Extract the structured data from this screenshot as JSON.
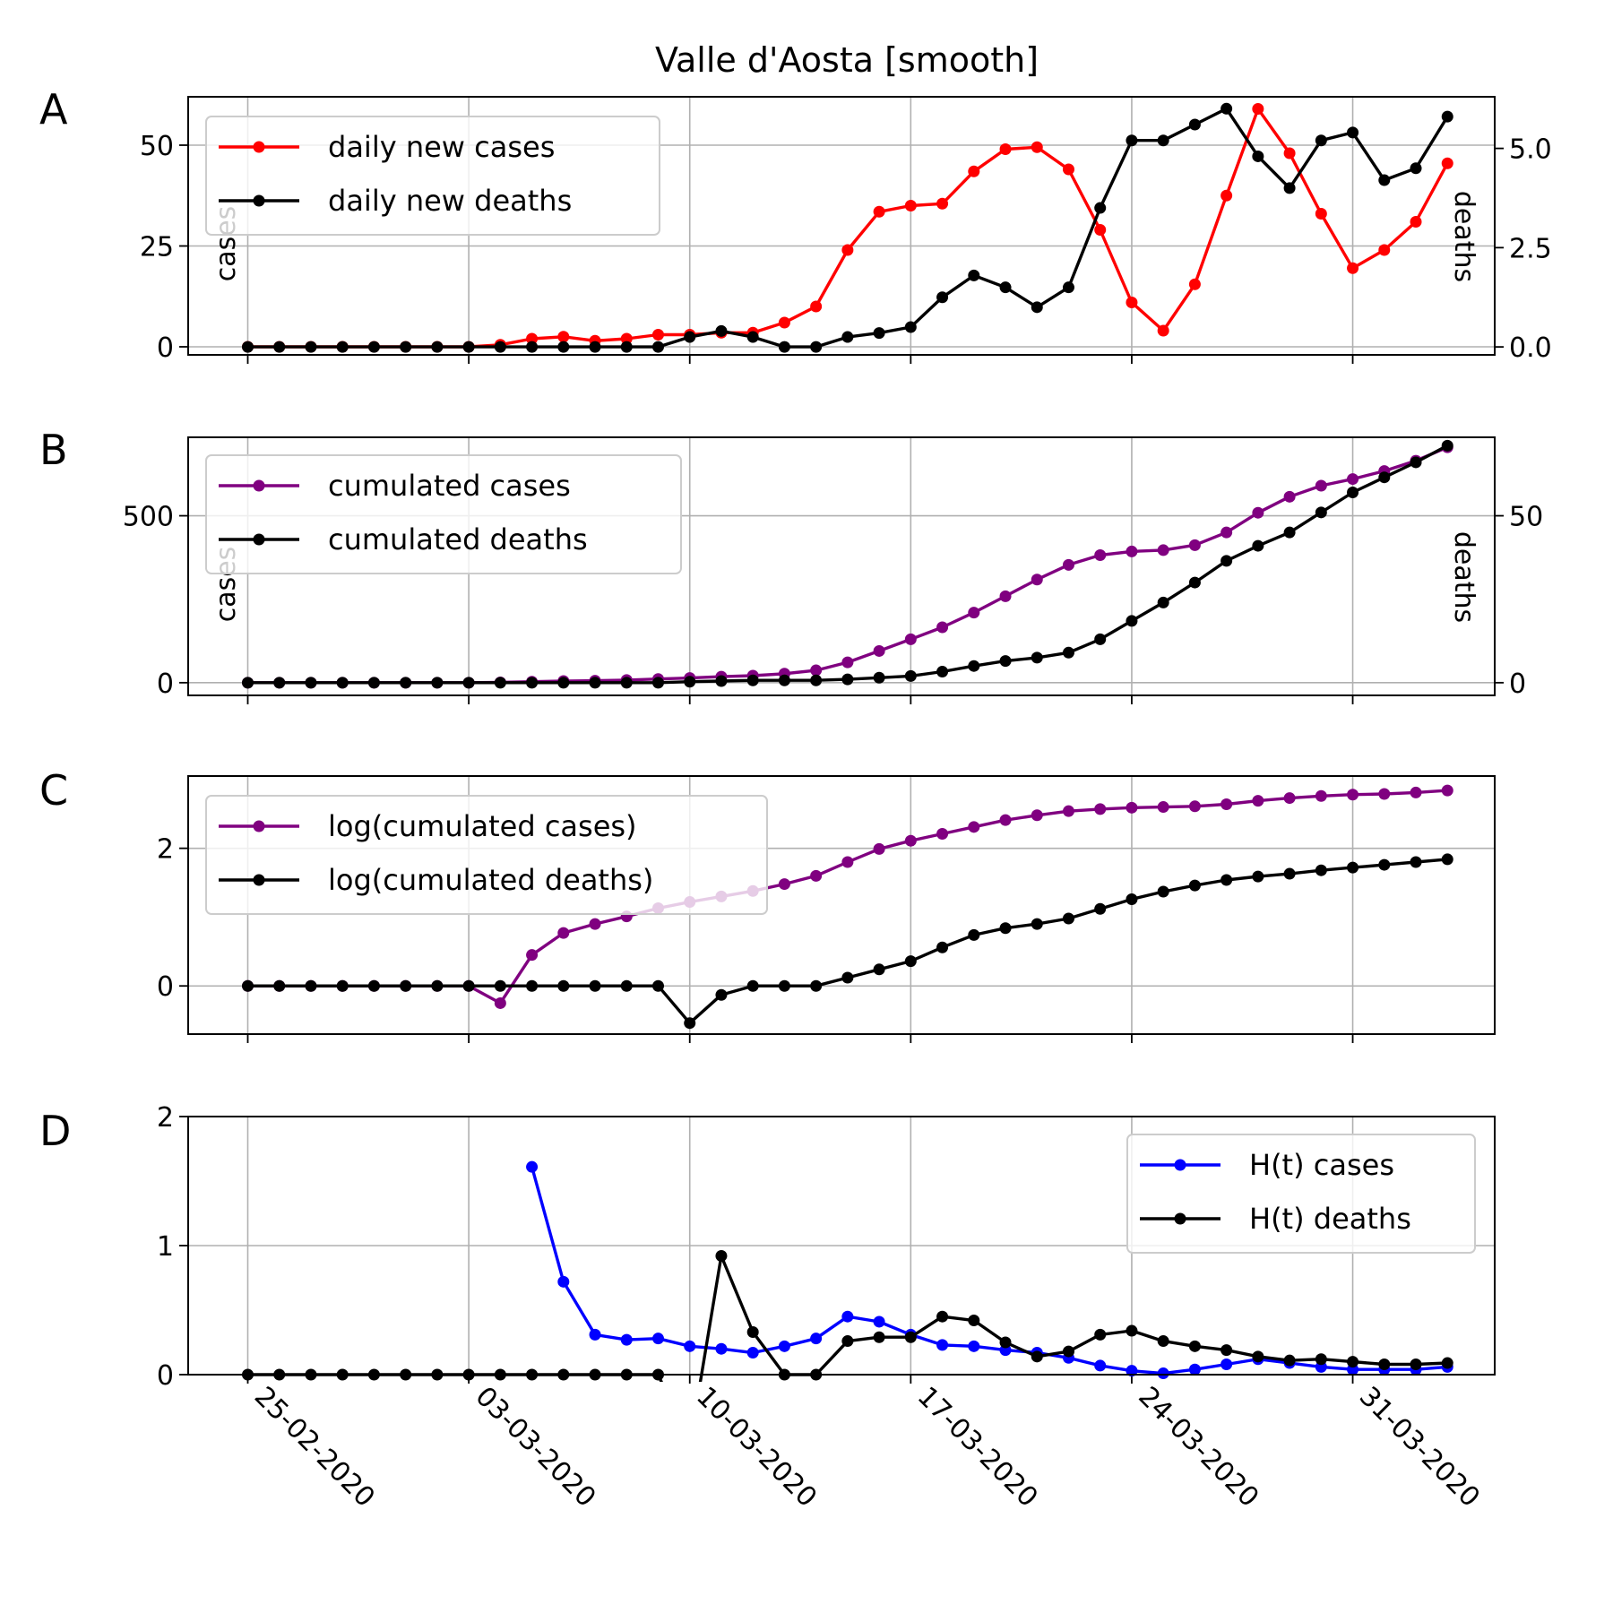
{
  "figure": {
    "title": "Valle d'Aosta [smooth]",
    "x_dates": [
      "25-02-2020",
      "26-02-2020",
      "27-02-2020",
      "28-02-2020",
      "29-02-2020",
      "01-03-2020",
      "02-03-2020",
      "03-03-2020",
      "04-03-2020",
      "05-03-2020",
      "06-03-2020",
      "07-03-2020",
      "08-03-2020",
      "09-03-2020",
      "10-03-2020",
      "11-03-2020",
      "12-03-2020",
      "13-03-2020",
      "14-03-2020",
      "15-03-2020",
      "16-03-2020",
      "17-03-2020",
      "18-03-2020",
      "19-03-2020",
      "20-03-2020",
      "21-03-2020",
      "22-03-2020",
      "23-03-2020",
      "24-03-2020",
      "25-03-2020",
      "26-03-2020",
      "27-03-2020",
      "28-03-2020",
      "29-03-2020",
      "30-03-2020",
      "31-03-2020",
      "01-04-2020",
      "02-04-2020",
      "03-04-2020"
    ],
    "x_tick_labels": [
      "25-02-2020",
      "03-03-2020",
      "10-03-2020",
      "17-03-2020",
      "24-03-2020",
      "31-03-2020"
    ]
  },
  "chart_data": [
    {
      "type": "line",
      "panel": "A",
      "ylabel": "cases",
      "y2label": "deaths",
      "ylim": [
        -2,
        62
      ],
      "y2lim": [
        -0.2,
        6.3
      ],
      "yticks": [
        0,
        25,
        50
      ],
      "y2ticks": [
        "0.0",
        "2.5",
        "5.0"
      ],
      "y2tick_values": [
        0,
        2.5,
        5.0
      ],
      "grid": true,
      "legend": "upper left",
      "series": [
        {
          "name": "daily new cases",
          "axis": "left",
          "color": "#ff0000",
          "values": [
            0,
            0,
            0,
            0,
            0,
            0,
            0,
            0,
            0.5,
            2,
            2.5,
            1.5,
            2,
            3,
            3,
            3.5,
            3.5,
            6,
            10,
            24,
            33.5,
            35,
            35.5,
            43.5,
            49,
            49.5,
            44,
            29,
            11,
            4,
            15.5,
            37.5,
            59,
            48,
            33,
            19.5,
            24,
            31,
            45.5
          ]
        },
        {
          "name": "daily new deaths",
          "axis": "right",
          "color": "#000000",
          "values": [
            0,
            0,
            0,
            0,
            0,
            0,
            0,
            0,
            0,
            0,
            0,
            0,
            0,
            0,
            0.25,
            0.4,
            0.25,
            0,
            0,
            0.25,
            0.35,
            0.5,
            1.25,
            1.8,
            1.5,
            1,
            1.5,
            3.5,
            5.2,
            5.2,
            5.6,
            6,
            4.8,
            4,
            5.2,
            5.4,
            4.2,
            4.5,
            5.8
          ]
        }
      ]
    },
    {
      "type": "line",
      "panel": "B",
      "ylabel": "cases",
      "y2label": "deaths",
      "ylim": [
        -38,
        735
      ],
      "y2lim": [
        -3.8,
        73.5
      ],
      "yticks": [
        0,
        500
      ],
      "y2ticks": [
        "0",
        "50"
      ],
      "y2tick_values": [
        0,
        50
      ],
      "grid": true,
      "legend": "upper left",
      "series": [
        {
          "name": "cumulated cases",
          "axis": "left",
          "color": "#800080",
          "values": [
            0,
            0,
            0,
            0,
            0,
            0,
            0,
            0,
            1,
            3,
            5,
            6,
            8,
            11,
            14,
            18,
            21,
            27,
            37,
            61,
            95,
            130,
            166,
            210,
            259,
            309,
            353,
            382,
            393,
            397,
            412,
            450,
            509,
            557,
            590,
            610,
            634,
            665,
            705
          ]
        },
        {
          "name": "cumulated deaths",
          "axis": "right",
          "color": "#000000",
          "values": [
            0,
            0,
            0,
            0,
            0,
            0,
            0,
            0,
            0,
            0,
            0,
            0,
            0,
            0,
            0.3,
            0.5,
            0.7,
            0.7,
            0.7,
            1,
            1.5,
            2,
            3.3,
            5,
            6.5,
            7.5,
            9,
            13,
            18.5,
            24,
            30,
            36.5,
            41,
            45,
            51,
            57,
            61.5,
            66,
            71
          ]
        }
      ]
    },
    {
      "type": "line",
      "panel": "C",
      "ylim": [
        -0.7,
        3.05
      ],
      "yticks": [
        0,
        2
      ],
      "grid": true,
      "legend": "upper left",
      "series": [
        {
          "name": "log(cumulated cases)",
          "color": "#800080",
          "values": [
            0,
            0,
            0,
            0,
            0,
            0,
            0,
            0,
            -0.25,
            0.45,
            0.77,
            0.9,
            1.01,
            1.13,
            1.22,
            1.3,
            1.38,
            1.48,
            1.6,
            1.8,
            1.99,
            2.11,
            2.21,
            2.31,
            2.41,
            2.48,
            2.54,
            2.57,
            2.59,
            2.6,
            2.61,
            2.64,
            2.69,
            2.73,
            2.76,
            2.78,
            2.79,
            2.81,
            2.84
          ]
        },
        {
          "name": "log(cumulated deaths)",
          "color": "#000000",
          "values": [
            0,
            0,
            0,
            0,
            0,
            0,
            0,
            0,
            0,
            0,
            0,
            0,
            0,
            0,
            -0.54,
            -0.13,
            0,
            0,
            0,
            0.12,
            0.24,
            0.36,
            0.56,
            0.74,
            0.84,
            0.9,
            0.98,
            1.12,
            1.26,
            1.37,
            1.46,
            1.54,
            1.59,
            1.63,
            1.68,
            1.72,
            1.76,
            1.8,
            1.84
          ]
        }
      ]
    },
    {
      "type": "line",
      "panel": "D",
      "ylim": [
        0,
        2
      ],
      "yticks": [
        0,
        1,
        2
      ],
      "grid": true,
      "legend": "upper right",
      "series": [
        {
          "name": "H(t) cases",
          "color": "#0000ff",
          "values": [
            null,
            null,
            null,
            null,
            null,
            null,
            null,
            null,
            null,
            1.61,
            0.72,
            0.31,
            0.27,
            0.28,
            0.22,
            0.2,
            0.17,
            0.22,
            0.28,
            0.45,
            0.41,
            0.31,
            0.23,
            0.22,
            0.19,
            0.17,
            0.13,
            0.07,
            0.03,
            0.01,
            0.04,
            0.08,
            0.12,
            0.09,
            0.06,
            0.04,
            0.04,
            0.04,
            0.06
          ]
        },
        {
          "name": "H(t) deaths",
          "color": "#000000",
          "values": [
            0,
            0,
            0,
            0,
            0,
            0,
            0,
            0,
            0,
            0,
            0,
            0,
            0,
            0,
            -0.55,
            0.92,
            0.33,
            0,
            0,
            0.26,
            0.29,
            0.29,
            0.45,
            0.42,
            0.25,
            0.14,
            0.18,
            0.31,
            0.34,
            0.26,
            0.22,
            0.19,
            0.14,
            0.11,
            0.12,
            0.1,
            0.08,
            0.08,
            0.09
          ]
        }
      ]
    }
  ]
}
